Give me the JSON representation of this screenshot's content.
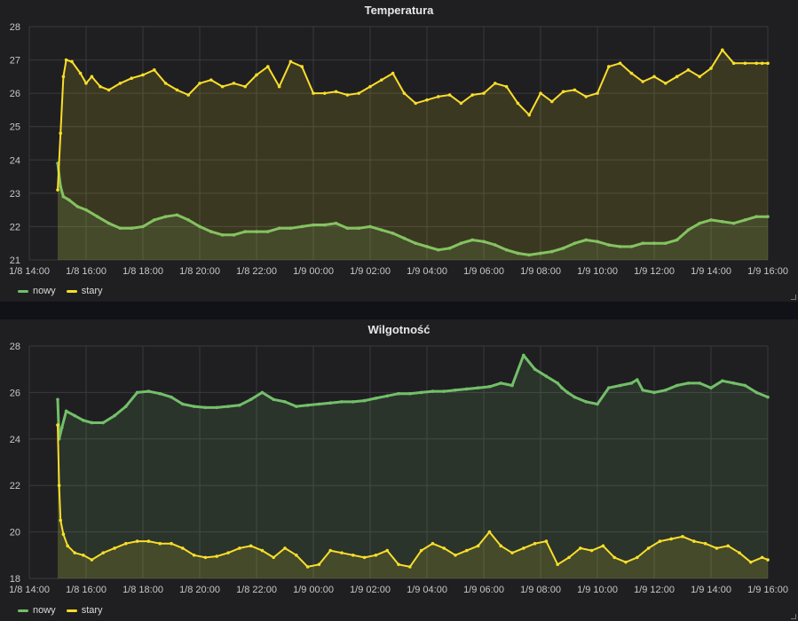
{
  "chart_data": [
    {
      "type": "line",
      "title": "Temperatura",
      "ylim": [
        21,
        28
      ],
      "yticks": [
        "21",
        "22",
        "23",
        "24",
        "25",
        "26",
        "27",
        "28"
      ],
      "xticks": [
        "1/8 14:00",
        "1/8 16:00",
        "1/8 18:00",
        "1/8 20:00",
        "1/8 22:00",
        "1/9 00:00",
        "1/9 02:00",
        "1/9 04:00",
        "1/9 06:00",
        "1/9 08:00",
        "1/9 10:00",
        "1/9 12:00",
        "1/9 14:00",
        "1/9 16:00"
      ],
      "grid": true,
      "legend_position": "bottom-left",
      "series": [
        {
          "name": "nowy",
          "color": "#73bf69",
          "fill": true,
          "x": [
            15,
            15.1,
            15.2,
            15.4,
            15.7,
            16,
            16.4,
            16.8,
            17.2,
            17.6,
            18,
            18.4,
            18.8,
            19.2,
            19.6,
            20,
            20.4,
            20.8,
            21.2,
            21.6,
            22,
            22.4,
            22.8,
            23.2,
            23.6,
            24,
            24.4,
            24.8,
            25.2,
            25.6,
            26,
            26.4,
            26.8,
            27.2,
            27.6,
            28,
            28.4,
            28.8,
            29.2,
            29.6,
            30,
            30.4,
            30.8,
            31.2,
            31.6,
            32,
            32.4,
            32.8,
            33.2,
            33.6,
            34,
            34.4,
            34.8,
            35.2,
            35.6,
            36,
            36.4,
            36.8,
            37.2,
            37.6,
            38,
            38.4,
            38.8,
            39.2,
            39.6,
            40
          ],
          "y": [
            23.9,
            23.2,
            22.9,
            22.8,
            22.6,
            22.5,
            22.3,
            22.1,
            21.95,
            21.95,
            22.0,
            22.2,
            22.3,
            22.35,
            22.2,
            22.0,
            21.85,
            21.75,
            21.75,
            21.85,
            21.85,
            21.85,
            21.95,
            21.95,
            22.0,
            22.05,
            22.05,
            22.1,
            21.95,
            21.95,
            22.0,
            21.9,
            21.8,
            21.65,
            21.5,
            21.4,
            21.3,
            21.35,
            21.5,
            21.6,
            21.55,
            21.45,
            21.3,
            21.2,
            21.15,
            21.2,
            21.25,
            21.35,
            21.5,
            21.6,
            21.55,
            21.45,
            21.4,
            21.4,
            21.5,
            21.5,
            21.5,
            21.6,
            21.9,
            22.1,
            22.2,
            22.15,
            22.1,
            22.2,
            22.3,
            22.3
          ]
        },
        {
          "name": "stary",
          "color": "#fade2a",
          "fill": true,
          "x": [
            15,
            15.1,
            15.2,
            15.3,
            15.5,
            15.8,
            16,
            16.2,
            16.5,
            16.8,
            17.2,
            17.6,
            18,
            18.4,
            18.8,
            19.2,
            19.6,
            20,
            20.4,
            20.8,
            21.2,
            21.6,
            22,
            22.4,
            22.8,
            23.2,
            23.6,
            24,
            24.4,
            24.8,
            25.2,
            25.6,
            26,
            26.4,
            26.8,
            27.2,
            27.6,
            28,
            28.4,
            28.8,
            29.2,
            29.6,
            30,
            30.4,
            30.8,
            31.2,
            31.6,
            32,
            32.4,
            32.8,
            33.2,
            33.6,
            34,
            34.4,
            34.8,
            35.2,
            35.6,
            36,
            36.4,
            36.8,
            37.2,
            37.6,
            38,
            38.4,
            38.8,
            39.2,
            39.6,
            39.8,
            40
          ],
          "y": [
            23.1,
            24.8,
            26.5,
            27.0,
            26.95,
            26.6,
            26.3,
            26.5,
            26.2,
            26.1,
            26.3,
            26.45,
            26.55,
            26.7,
            26.3,
            26.1,
            25.95,
            26.3,
            26.4,
            26.2,
            26.3,
            26.2,
            26.55,
            26.8,
            26.2,
            26.95,
            26.8,
            26.0,
            26.0,
            26.05,
            25.95,
            26.0,
            26.2,
            26.4,
            26.6,
            26.0,
            25.7,
            25.8,
            25.9,
            25.95,
            25.7,
            25.95,
            26.0,
            26.3,
            26.2,
            25.7,
            25.35,
            26.0,
            25.75,
            26.05,
            26.1,
            25.9,
            26.0,
            26.8,
            26.9,
            26.6,
            26.35,
            26.5,
            26.3,
            26.5,
            26.7,
            26.5,
            26.75,
            27.3,
            26.9,
            26.9,
            26.9,
            26.9,
            26.9
          ]
        }
      ]
    },
    {
      "type": "line",
      "title": "Wilgotność",
      "ylim": [
        18,
        28
      ],
      "yticks": [
        "18",
        "20",
        "22",
        "24",
        "26",
        "28"
      ],
      "xticks": [
        "1/8 14:00",
        "1/8 16:00",
        "1/8 18:00",
        "1/8 20:00",
        "1/8 22:00",
        "1/9 00:00",
        "1/9 02:00",
        "1/9 04:00",
        "1/9 06:00",
        "1/9 08:00",
        "1/9 10:00",
        "1/9 12:00",
        "1/9 14:00",
        "1/9 16:00"
      ],
      "grid": true,
      "legend_position": "bottom-left",
      "series": [
        {
          "name": "nowy",
          "color": "#73bf69",
          "fill": true,
          "x": [
            15,
            15.05,
            15.15,
            15.3,
            15.6,
            15.9,
            16.2,
            16.6,
            17,
            17.4,
            17.8,
            18.2,
            18.6,
            19,
            19.4,
            19.8,
            20.2,
            20.6,
            21,
            21.4,
            21.8,
            22.2,
            22.6,
            23,
            23.4,
            23.8,
            24.2,
            24.6,
            25,
            25.4,
            25.8,
            26.2,
            26.6,
            27,
            27.4,
            27.8,
            28.2,
            28.6,
            29,
            29.4,
            29.8,
            30.2,
            30.6,
            31,
            31.4,
            31.8,
            32.2,
            32.6,
            32.75,
            32.95,
            33.2,
            33.6,
            34,
            34.4,
            34.8,
            35.2,
            35.4,
            35.6,
            36,
            36.4,
            36.8,
            37.2,
            37.6,
            38,
            38.4,
            38.8,
            39.2,
            39.6,
            40
          ],
          "y": [
            25.7,
            24.0,
            24.5,
            25.2,
            25.0,
            24.8,
            24.7,
            24.7,
            25.0,
            25.4,
            26.0,
            26.05,
            25.95,
            25.8,
            25.5,
            25.4,
            25.35,
            25.35,
            25.4,
            25.45,
            25.7,
            26.0,
            25.7,
            25.6,
            25.4,
            25.45,
            25.5,
            25.55,
            25.6,
            25.6,
            25.65,
            25.75,
            25.85,
            25.95,
            25.95,
            26.0,
            26.05,
            26.05,
            26.1,
            26.15,
            26.2,
            26.25,
            26.4,
            26.3,
            27.6,
            27.0,
            26.7,
            26.4,
            26.2,
            26.0,
            25.8,
            25.6,
            25.5,
            26.2,
            26.3,
            26.4,
            26.55,
            26.1,
            26.0,
            26.1,
            26.3,
            26.4,
            26.4,
            26.2,
            26.5,
            26.4,
            26.3,
            26.0,
            25.8
          ]
        },
        {
          "name": "stary",
          "color": "#fade2a",
          "fill": true,
          "x": [
            15,
            15.05,
            15.1,
            15.2,
            15.35,
            15.6,
            15.9,
            16.2,
            16.6,
            17,
            17.4,
            17.8,
            18.2,
            18.6,
            19,
            19.4,
            19.8,
            20.2,
            20.6,
            21,
            21.4,
            21.8,
            22.2,
            22.6,
            23,
            23.4,
            23.8,
            24.2,
            24.6,
            25,
            25.4,
            25.8,
            26.2,
            26.6,
            27,
            27.4,
            27.8,
            28.2,
            28.6,
            29,
            29.4,
            29.8,
            30.2,
            30.6,
            31,
            31.4,
            31.8,
            32.2,
            32.6,
            33,
            33.4,
            33.8,
            34.2,
            34.6,
            35,
            35.4,
            35.8,
            36.2,
            36.6,
            37,
            37.4,
            37.8,
            38.2,
            38.6,
            39,
            39.4,
            39.8,
            40
          ],
          "y": [
            24.6,
            22.0,
            20.5,
            19.9,
            19.4,
            19.1,
            19.0,
            18.8,
            19.1,
            19.3,
            19.5,
            19.6,
            19.6,
            19.5,
            19.5,
            19.3,
            19.0,
            18.9,
            18.95,
            19.1,
            19.3,
            19.4,
            19.2,
            18.9,
            19.3,
            19.0,
            18.5,
            18.6,
            19.2,
            19.1,
            19.0,
            18.9,
            19.0,
            19.2,
            18.6,
            18.5,
            19.2,
            19.5,
            19.3,
            19.0,
            19.2,
            19.4,
            20.0,
            19.4,
            19.1,
            19.3,
            19.5,
            19.6,
            18.6,
            18.9,
            19.3,
            19.2,
            19.4,
            18.9,
            18.7,
            18.9,
            19.3,
            19.6,
            19.7,
            19.8,
            19.6,
            19.5,
            19.3,
            19.4,
            19.1,
            18.7,
            18.9,
            18.8
          ]
        }
      ]
    }
  ],
  "panels": [
    {
      "title": "Temperatura",
      "legend": [
        {
          "label": "nowy",
          "color": "#73bf69"
        },
        {
          "label": "stary",
          "color": "#fade2a"
        }
      ]
    },
    {
      "title": "Wilgotność",
      "legend": [
        {
          "label": "nowy",
          "color": "#73bf69"
        },
        {
          "label": "stary",
          "color": "#fade2a"
        }
      ]
    }
  ]
}
